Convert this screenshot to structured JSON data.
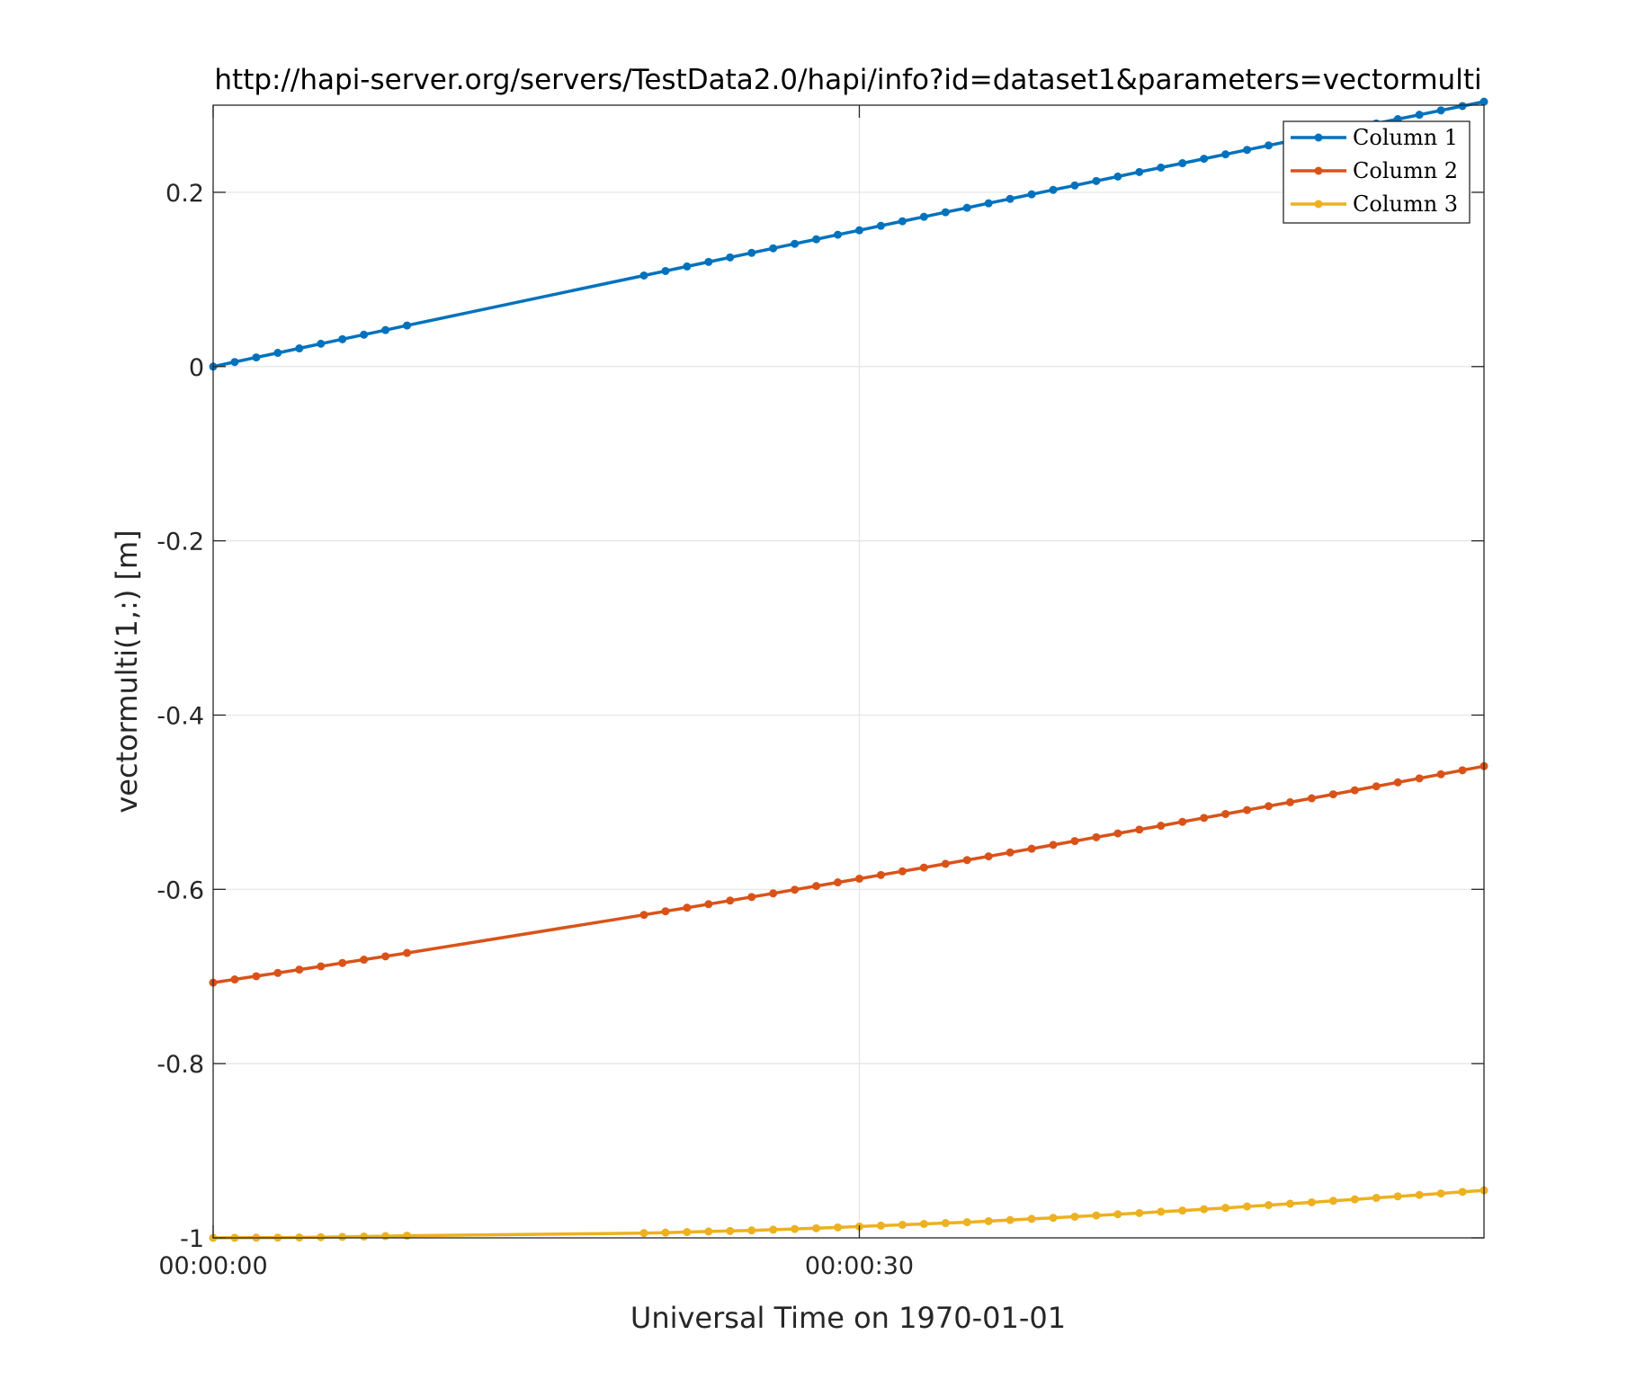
{
  "chart_data": {
    "type": "line",
    "title": "http://hapi-server.org/servers/TestData2.0/hapi/info?id=dataset1&parameters=vectormulti",
    "xlabel": "Universal Time on 1970-01-01",
    "ylabel": "vectormulti(1,:) [m]",
    "x_unit": "seconds after 00:00:00",
    "xlim": [
      0,
      59
    ],
    "ylim": [
      -1,
      0.3
    ],
    "x_ticks": [
      0,
      30
    ],
    "x_tick_labels": [
      "00:00:00",
      "00:00:30"
    ],
    "y_ticks": [
      -1,
      -0.8,
      -0.6,
      -0.4,
      -0.2,
      0,
      0.2
    ],
    "y_tick_labels": [
      "-1",
      "-0.8",
      "-0.6",
      "-0.4",
      "-0.2",
      "0",
      "0.2"
    ],
    "grid": true,
    "legend_position": "top-right",
    "x": [
      0,
      1,
      2,
      3,
      4,
      5,
      6,
      7,
      8,
      9,
      20,
      21,
      22,
      23,
      24,
      25,
      26,
      27,
      28,
      29,
      30,
      31,
      32,
      33,
      34,
      35,
      36,
      37,
      38,
      39,
      40,
      41,
      42,
      43,
      44,
      45,
      46,
      47,
      48,
      49,
      50,
      51,
      52,
      53,
      54,
      55,
      56,
      57,
      58,
      59
    ],
    "series": [
      {
        "name": "Column 1",
        "color": "#0072BD",
        "values": [
          0.0,
          0.0052,
          0.0105,
          0.0157,
          0.0209,
          0.0262,
          0.0314,
          0.0366,
          0.0419,
          0.0471,
          0.1045,
          0.1097,
          0.1149,
          0.1201,
          0.1253,
          0.1305,
          0.1357,
          0.1409,
          0.1461,
          0.1513,
          0.1564,
          0.1616,
          0.1668,
          0.1719,
          0.1771,
          0.1822,
          0.1874,
          0.1925,
          0.1977,
          0.2028,
          0.2079,
          0.213,
          0.2181,
          0.2233,
          0.2284,
          0.2334,
          0.2385,
          0.2436,
          0.2487,
          0.2538,
          0.2588,
          0.2639,
          0.2689,
          0.274,
          0.279,
          0.284,
          0.289,
          0.294,
          0.299,
          0.304
        ]
      },
      {
        "name": "Column 2",
        "color": "#D95319",
        "values": [
          -0.7071,
          -0.7034,
          -0.6997,
          -0.6959,
          -0.6921,
          -0.6884,
          -0.6845,
          -0.6807,
          -0.6769,
          -0.673,
          -0.6293,
          -0.6252,
          -0.6211,
          -0.617,
          -0.6129,
          -0.6088,
          -0.6046,
          -0.6004,
          -0.5962,
          -0.592,
          -0.5878,
          -0.5835,
          -0.5793,
          -0.575,
          -0.5707,
          -0.5664,
          -0.5621,
          -0.5577,
          -0.5534,
          -0.549,
          -0.5446,
          -0.5402,
          -0.5358,
          -0.5314,
          -0.527,
          -0.5225,
          -0.518,
          -0.5135,
          -0.509,
          -0.5045,
          -0.5,
          -0.4955,
          -0.4909,
          -0.4863,
          -0.4818,
          -0.4772,
          -0.4726,
          -0.4679,
          -0.4633,
          -0.4586
        ]
      },
      {
        "name": "Column 3",
        "color": "#EDB120",
        "values": [
          -1.0,
          -0.9999,
          -0.9998,
          -0.9997,
          -0.9995,
          -0.9992,
          -0.9989,
          -0.9985,
          -0.998,
          -0.9975,
          -0.9945,
          -0.994,
          -0.9933,
          -0.9927,
          -0.9921,
          -0.9914,
          -0.9906,
          -0.9898,
          -0.989,
          -0.988,
          -0.987,
          -0.986,
          -0.985,
          -0.984,
          -0.983,
          -0.982,
          -0.9808,
          -0.9795,
          -0.9782,
          -0.977,
          -0.9757,
          -0.9743,
          -0.9729,
          -0.9715,
          -0.97,
          -0.9686,
          -0.9671,
          -0.9656,
          -0.964,
          -0.9624,
          -0.9608,
          -0.9592,
          -0.9575,
          -0.9558,
          -0.9541,
          -0.9524,
          -0.9507,
          -0.949,
          -0.9472,
          -0.9455
        ]
      }
    ]
  }
}
